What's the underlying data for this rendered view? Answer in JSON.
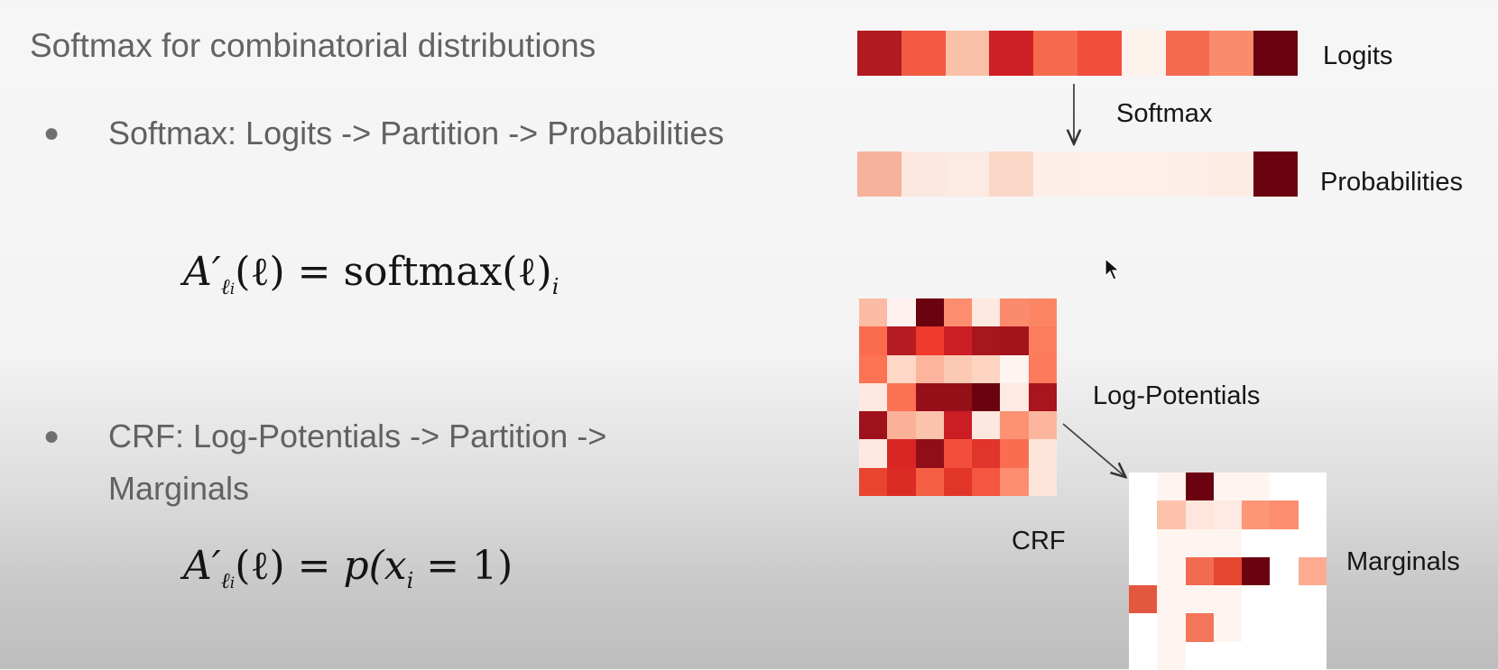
{
  "slide": {
    "title": "Softmax for combinatorial distributions",
    "bullets": [
      {
        "dot": "●",
        "text": "Softmax: Logits -> Partition -> Probabilities"
      },
      {
        "dot": "●",
        "text": "CRF: Log-Potentials -> Partition -> Marginals"
      }
    ],
    "formulas": [
      {
        "lhs": "A′",
        "sub": "ℓ",
        "subsub": "i",
        "arg": "(ℓ)",
        "eq": " = ",
        "rhs": "softmax(ℓ)",
        "rhs_sub": "i"
      },
      {
        "lhs": "A′",
        "sub": "ℓ",
        "subsub": "i",
        "arg": "(ℓ)",
        "eq": " = ",
        "rhs": "p(x",
        "rhs_sub": "i",
        "rhs_tail": " = 1)"
      }
    ]
  },
  "diagram": {
    "labels": {
      "logits": "Logits",
      "softmax": "Softmax",
      "probabilities": "Probabilities",
      "log_potentials": "Log-Potentials",
      "crf": "CRF",
      "marginals": "Marginals"
    },
    "logits_row": [
      "#b11a20",
      "#f25a41",
      "#f9c0a8",
      "#cf1f26",
      "#f6694d",
      "#f24e3c",
      "#fef2ec",
      "#f46a4f",
      "#fa8b6c",
      "#6b020f"
    ],
    "probabilities_row": [
      "#f6b29c",
      "#fde8e0",
      "#fdeae3",
      "#fbd7c7",
      "#feeee8",
      "#feefe9",
      "#feefea",
      "#feeee8",
      "#fdebe4",
      "#6b020f"
    ],
    "crf_grid": [
      [
        "#fcbba4",
        "#fff2ee",
        "#6b020f",
        "#fc8d6f",
        "#fee8df",
        "#fc8b6d",
        "#fc8564"
      ],
      [
        "#fb6c4e",
        "#b41b22",
        "#ee3a2c",
        "#cd1e25",
        "#a7151d",
        "#a2131c",
        "#fb7d5d"
      ],
      [
        "#fb7353",
        "#fed7c6",
        "#fcb49c",
        "#fcc9b4",
        "#fdd3c1",
        "#fff4ef",
        "#fb7b5c"
      ],
      [
        "#fee9e0",
        "#fb7152",
        "#950f19",
        "#950f19",
        "#6b020f",
        "#feeae2",
        "#a8151e"
      ],
      [
        "#9f121c",
        "#fbb098",
        "#fcc3ac",
        "#cb1d24",
        "#fee7de",
        "#fc9272",
        "#fcb69e"
      ],
      [
        "#fee9e1",
        "#d92622",
        "#900e18",
        "#f34e3b",
        "#e1342a",
        "#fb6d4f",
        "#fee5db"
      ],
      [
        "#e9442e",
        "#dc2b25",
        "#f55f44",
        "#e1352a",
        "#f4563f",
        "#fc8d6f",
        "#fee5dc"
      ]
    ],
    "marginals_grid": [
      [
        "#ffffff",
        "#fff5f0",
        "#6b020f",
        "#fff5f0",
        "#fff5f0",
        "#ffffff",
        "#ffffff"
      ],
      [
        "#ffffff",
        "#fcc2ab",
        "#fee6dd",
        "#feeae2",
        "#fc9676",
        "#fc8d6e",
        "#ffffff"
      ],
      [
        "#ffffff",
        "#fff5f0",
        "#fff5f0",
        "#fff5f0",
        "#ffffff",
        "#ffffff",
        "#ffffff"
      ],
      [
        "#ffffff",
        "#fff5f0",
        "#f26b51",
        "#e4462f",
        "#6b020f",
        "#ffffff",
        "#fcab92"
      ],
      [
        "#e4573f",
        "#fff5f0",
        "#fff5f0",
        "#fff5f0",
        "#ffffff",
        "#ffffff",
        "#ffffff"
      ],
      [
        "#ffffff",
        "#fff5f0",
        "#f3765b",
        "#fff5f0",
        "#ffffff",
        "#ffffff",
        "#ffffff"
      ],
      [
        "#ffffff",
        "#fff5f0",
        "#ffffff",
        "#ffffff",
        "#ffffff",
        "#ffffff",
        "#ffffff"
      ]
    ]
  }
}
